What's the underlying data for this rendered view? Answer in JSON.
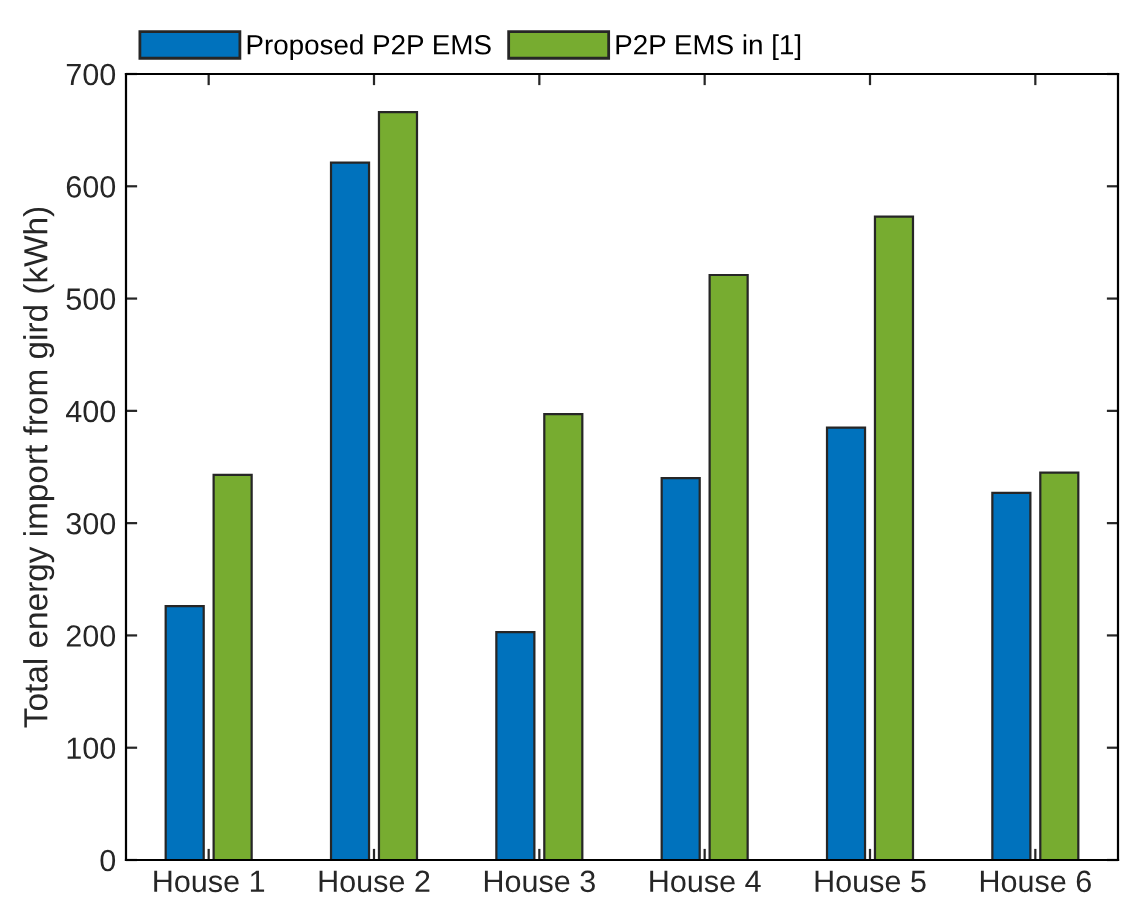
{
  "chart_data": {
    "type": "bar",
    "ylabel": "Total energy import from gird (kWh)",
    "categories": [
      "House 1",
      "House 2",
      "House 3",
      "House 4",
      "House 5",
      "House 6"
    ],
    "series": [
      {
        "name": "Proposed P2P EMS",
        "color": "#0072bd",
        "values": [
          226,
          621,
          203,
          340,
          385,
          327
        ]
      },
      {
        "name": "P2P EMS in [1]",
        "color": "#77ac30",
        "values": [
          343,
          666,
          397,
          521,
          573,
          345
        ]
      }
    ],
    "ylim": [
      0,
      700
    ],
    "yticks": [
      0,
      100,
      200,
      300,
      400,
      500,
      600,
      700
    ],
    "grid": false,
    "legend": "top left"
  }
}
